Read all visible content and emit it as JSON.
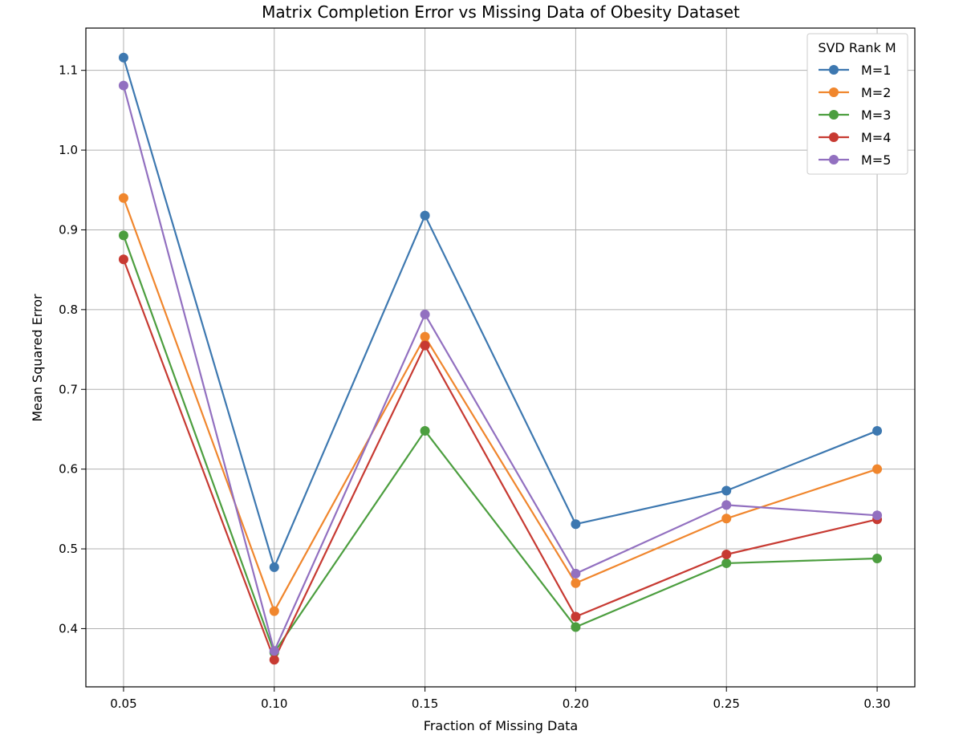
{
  "chart_data": {
    "type": "line",
    "title": "Matrix Completion Error vs Missing Data of Obesity Dataset",
    "xlabel": "Fraction of Missing Data",
    "ylabel": "Mean Squared Error",
    "x": [
      0.05,
      0.1,
      0.15,
      0.2,
      0.25,
      0.3
    ],
    "x_tick_labels": [
      "0.05",
      "0.10",
      "0.15",
      "0.20",
      "0.25",
      "0.30"
    ],
    "y_ticks": [
      0.4,
      0.5,
      0.6,
      0.7,
      0.8,
      0.9,
      1.0,
      1.1
    ],
    "y_tick_labels": [
      "0.4",
      "0.5",
      "0.6",
      "0.7",
      "0.8",
      "0.9",
      "1.0",
      "1.1"
    ],
    "xlim": [
      0.0375,
      0.3125
    ],
    "ylim": [
      0.327,
      1.153
    ],
    "grid": true,
    "legend_title": "SVD Rank M",
    "legend_position": "top-right",
    "series": [
      {
        "name": "M=1",
        "color": "#3d78b0",
        "values": [
          1.116,
          0.477,
          0.918,
          0.531,
          0.573,
          0.648
        ]
      },
      {
        "name": "M=2",
        "color": "#f0862d",
        "values": [
          0.94,
          0.422,
          0.766,
          0.457,
          0.538,
          0.6
        ]
      },
      {
        "name": "M=3",
        "color": "#4c9e3f",
        "values": [
          0.893,
          0.37,
          0.648,
          0.402,
          0.482,
          0.488
        ]
      },
      {
        "name": "M=4",
        "color": "#c73a32",
        "values": [
          0.863,
          0.361,
          0.755,
          0.415,
          0.493,
          0.537
        ]
      },
      {
        "name": "M=5",
        "color": "#9270c0",
        "values": [
          1.081,
          0.372,
          0.794,
          0.469,
          0.555,
          0.542
        ]
      }
    ]
  }
}
